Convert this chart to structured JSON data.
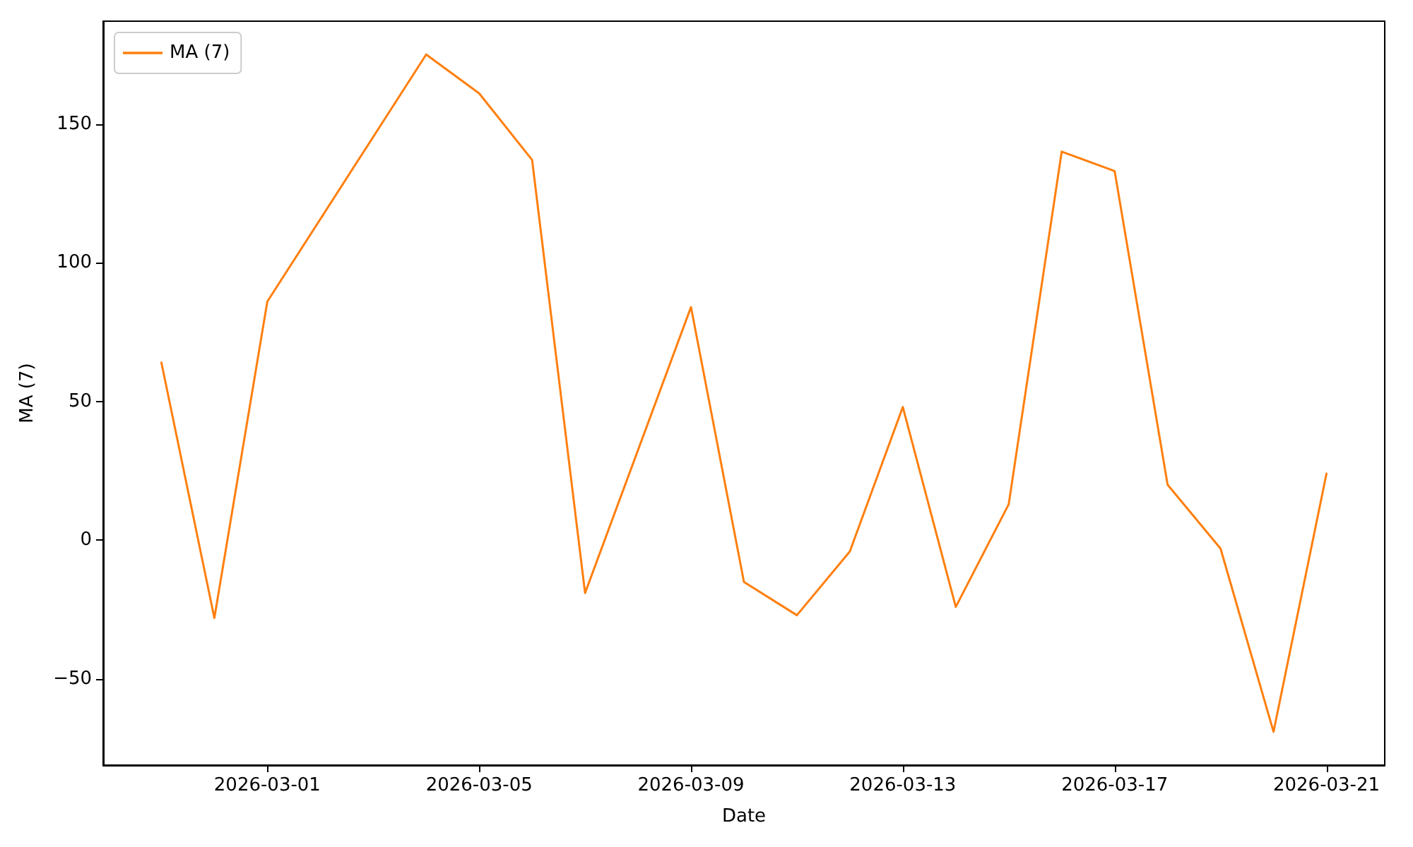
{
  "chart_data": {
    "type": "line",
    "xlabel": "Date",
    "ylabel": "MA (7)",
    "x": [
      "2026-02-27",
      "2026-02-28",
      "2026-03-01",
      "2026-03-04",
      "2026-03-05",
      "2026-03-06",
      "2026-03-07",
      "2026-03-09",
      "2026-03-10",
      "2026-03-11",
      "2026-03-12",
      "2026-03-13",
      "2026-03-14",
      "2026-03-15",
      "2026-03-16",
      "2026-03-17",
      "2026-03-18",
      "2026-03-19",
      "2026-03-20",
      "2026-03-21"
    ],
    "series": [
      {
        "name": "MA (7)",
        "color": "#ff7f0e",
        "values": [
          64,
          -28,
          86,
          175,
          161,
          137,
          -19,
          84,
          -15,
          -27,
          -4,
          48,
          -24,
          13,
          140,
          133,
          20,
          -3,
          -69,
          24
        ]
      }
    ],
    "xlim": [
      "2026-02-25T21:36",
      "2026-03-22T02:24"
    ],
    "xticks": [
      "2026-03-01",
      "2026-03-05",
      "2026-03-09",
      "2026-03-13",
      "2026-03-17",
      "2026-03-21"
    ],
    "ylim": [
      -81,
      187
    ],
    "yticks": [
      -50,
      0,
      50,
      100,
      150
    ],
    "grid": false,
    "legend": "top left",
    "marker": "none"
  }
}
